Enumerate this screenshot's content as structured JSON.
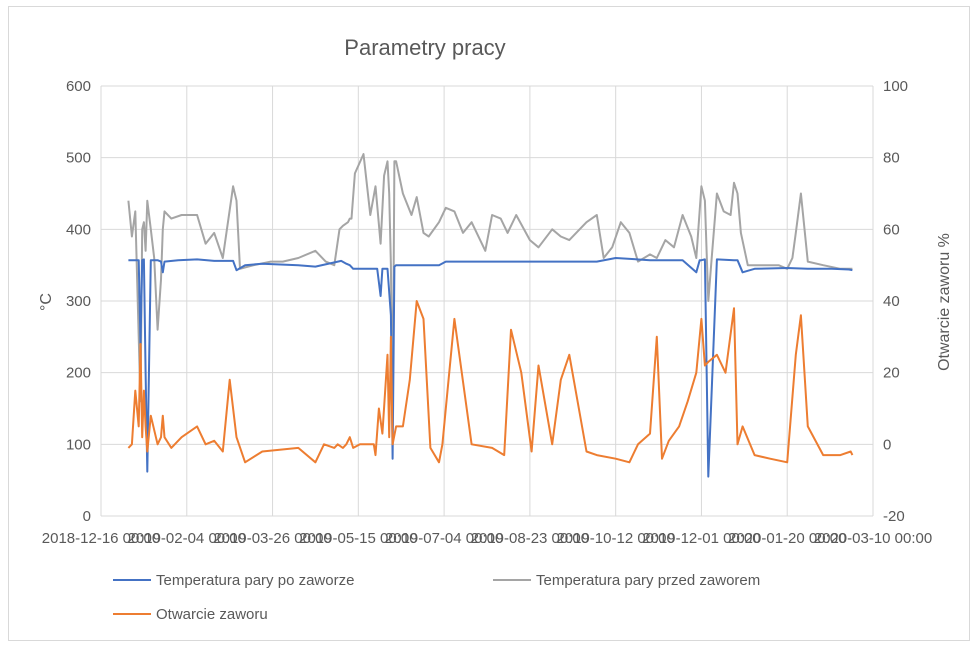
{
  "chart_data": {
    "type": "line",
    "title": "Parametry pracy",
    "xlabel": "",
    "ylabel": "°C",
    "y2label": "Otwarcie zaworu %",
    "ylim": [
      0,
      600
    ],
    "y2lim": [
      -20,
      100
    ],
    "yticks": [
      "0",
      "100",
      "200",
      "300",
      "400",
      "500",
      "600"
    ],
    "y2ticks": [
      "-20",
      "0",
      "20",
      "40",
      "60",
      "80",
      "100"
    ],
    "xlim": [
      "2018-12-16",
      "2020-03-10"
    ],
    "xticks": [
      "2018-12-16 00:00",
      "2019-02-04 00:00",
      "2019-03-26 00:00",
      "2019-05-15 00:00",
      "2019-07-04 00:00",
      "2019-08-23 00:00",
      "2019-10-12 00:00",
      "2019-12-01 00:00",
      "2020-01-20 00:00",
      "2020-03-10 00:00"
    ],
    "grid": true,
    "legend_position": "bottom",
    "series": [
      {
        "name": "Temperatura pary po zaworze",
        "axis": "left",
        "color": "#4472C4",
        "x": [
          "2019-01-01",
          "2019-01-05",
          "2019-01-07",
          "2019-01-08",
          "2019-01-09",
          "2019-01-10",
          "2019-01-11",
          "2019-01-12",
          "2019-01-14",
          "2019-01-18",
          "2019-01-20",
          "2019-01-21",
          "2019-01-22",
          "2019-01-30",
          "2019-02-10",
          "2019-02-20",
          "2019-03-03",
          "2019-03-05",
          "2019-03-10",
          "2019-03-20",
          "2019-04-10",
          "2019-04-20",
          "2019-05-05",
          "2019-05-08",
          "2019-05-10",
          "2019-05-12",
          "2019-05-15",
          "2019-05-20",
          "2019-05-26",
          "2019-05-28",
          "2019-05-29",
          "2019-06-01",
          "2019-06-03",
          "2019-06-04",
          "2019-06-05",
          "2019-06-06",
          "2019-06-10",
          "2019-07-01",
          "2019-07-05",
          "2019-08-01",
          "2019-09-01",
          "2019-10-01",
          "2019-10-12",
          "2019-11-01",
          "2019-11-20",
          "2019-11-28",
          "2019-11-30",
          "2019-12-01",
          "2019-12-03",
          "2019-12-05",
          "2019-12-10",
          "2019-12-20",
          "2019-12-22",
          "2019-12-25",
          "2020-01-01",
          "2020-01-20",
          "2020-02-01",
          "2020-02-15",
          "2020-02-25",
          "2020-02-27"
        ],
        "y": [
          357,
          357,
          357,
          240,
          357,
          358,
          200,
          62,
          357,
          357,
          355,
          340,
          355,
          357,
          358,
          356,
          356,
          343,
          350,
          352,
          350,
          348,
          356,
          352,
          350,
          345,
          345,
          345,
          345,
          307,
          345,
          345,
          280,
          80,
          348,
          350,
          350,
          350,
          355,
          355,
          355,
          355,
          360,
          357,
          357,
          340,
          357,
          357,
          358,
          55,
          358,
          357,
          357,
          340,
          345,
          346,
          345,
          345,
          344,
          343
        ]
      },
      {
        "name": "Temperatura pary przed zaworem",
        "axis": "left",
        "color": "#A5A5A5",
        "x": [
          "2019-01-01",
          "2019-01-03",
          "2019-01-05",
          "2019-01-07",
          "2019-01-08",
          "2019-01-09",
          "2019-01-10",
          "2019-01-11",
          "2019-01-12",
          "2019-01-14",
          "2019-01-16",
          "2019-01-18",
          "2019-01-20",
          "2019-01-21",
          "2019-01-22",
          "2019-01-26",
          "2019-02-01",
          "2019-02-10",
          "2019-02-15",
          "2019-02-20",
          "2019-02-25",
          "2019-03-03",
          "2019-03-05",
          "2019-03-07",
          "2019-03-15",
          "2019-03-25",
          "2019-04-01",
          "2019-04-10",
          "2019-04-20",
          "2019-04-26",
          "2019-05-01",
          "2019-05-04",
          "2019-05-06",
          "2019-05-09",
          "2019-05-10",
          "2019-05-11",
          "2019-05-13",
          "2019-05-18",
          "2019-05-22",
          "2019-05-25",
          "2019-05-28",
          "2019-05-30",
          "2019-06-01",
          "2019-06-02",
          "2019-06-03",
          "2019-06-04",
          "2019-06-05",
          "2019-06-06",
          "2019-06-10",
          "2019-06-15",
          "2019-06-18",
          "2019-06-22",
          "2019-06-25",
          "2019-07-01",
          "2019-07-05",
          "2019-07-10",
          "2019-07-15",
          "2019-07-20",
          "2019-07-28",
          "2019-08-01",
          "2019-08-06",
          "2019-08-10",
          "2019-08-15",
          "2019-08-23",
          "2019-08-28",
          "2019-09-05",
          "2019-09-10",
          "2019-09-15",
          "2019-09-25",
          "2019-10-01",
          "2019-10-05",
          "2019-10-10",
          "2019-10-15",
          "2019-10-20",
          "2019-10-25",
          "2019-11-01",
          "2019-11-05",
          "2019-11-10",
          "2019-11-15",
          "2019-11-20",
          "2019-11-25",
          "2019-11-28",
          "2019-12-01",
          "2019-12-03",
          "2019-12-05",
          "2019-12-07",
          "2019-12-10",
          "2019-12-14",
          "2019-12-18",
          "2019-12-20",
          "2019-12-22",
          "2019-12-24",
          "2019-12-28",
          "2020-01-05",
          "2020-01-15",
          "2020-01-20",
          "2020-01-23",
          "2020-01-25",
          "2020-01-28",
          "2020-02-01",
          "2020-02-10",
          "2020-02-20",
          "2020-02-27"
        ],
        "y": [
          440,
          390,
          425,
          250,
          160,
          400,
          410,
          370,
          440,
          400,
          360,
          260,
          330,
          400,
          425,
          415,
          420,
          420,
          380,
          395,
          360,
          460,
          440,
          345,
          350,
          355,
          355,
          360,
          370,
          355,
          350,
          400,
          405,
          410,
          415,
          415,
          478,
          505,
          420,
          460,
          380,
          475,
          495,
          450,
          350,
          120,
          495,
          495,
          450,
          420,
          445,
          395,
          390,
          410,
          430,
          425,
          395,
          410,
          370,
          420,
          415,
          395,
          420,
          385,
          375,
          400,
          390,
          385,
          410,
          420,
          360,
          375,
          410,
          395,
          355,
          365,
          360,
          385,
          375,
          420,
          390,
          360,
          460,
          440,
          300,
          360,
          450,
          425,
          420,
          465,
          450,
          395,
          350,
          350,
          350,
          345,
          360,
          395,
          450,
          355,
          350,
          345,
          345
        ]
      },
      {
        "name": "Otwarcie zaworu",
        "axis": "right",
        "color": "#ED7D31",
        "x": [
          "2019-01-01",
          "2019-01-03",
          "2019-01-05",
          "2019-01-07",
          "2019-01-08",
          "2019-01-09",
          "2019-01-10",
          "2019-01-11",
          "2019-01-12",
          "2019-01-14",
          "2019-01-18",
          "2019-01-20",
          "2019-01-21",
          "2019-01-22",
          "2019-01-26",
          "2019-02-01",
          "2019-02-10",
          "2019-02-15",
          "2019-02-20",
          "2019-02-25",
          "2019-03-01",
          "2019-03-05",
          "2019-03-10",
          "2019-03-20",
          "2019-04-10",
          "2019-04-20",
          "2019-04-25",
          "2019-05-01",
          "2019-05-03",
          "2019-05-06",
          "2019-05-08",
          "2019-05-10",
          "2019-05-12",
          "2019-05-16",
          "2019-05-20",
          "2019-05-24",
          "2019-05-25",
          "2019-05-27",
          "2019-05-29",
          "2019-06-01",
          "2019-06-02",
          "2019-06-03",
          "2019-06-04",
          "2019-06-06",
          "2019-06-10",
          "2019-06-14",
          "2019-06-18",
          "2019-06-22",
          "2019-06-26",
          "2019-07-01",
          "2019-07-03",
          "2019-07-05",
          "2019-07-10",
          "2019-07-20",
          "2019-08-01",
          "2019-08-08",
          "2019-08-12",
          "2019-08-18",
          "2019-08-24",
          "2019-08-28",
          "2019-09-05",
          "2019-09-10",
          "2019-09-15",
          "2019-09-25",
          "2019-10-01",
          "2019-10-12",
          "2019-10-20",
          "2019-10-25",
          "2019-11-01",
          "2019-11-05",
          "2019-11-08",
          "2019-11-12",
          "2019-11-18",
          "2019-11-23",
          "2019-11-28",
          "2019-12-01",
          "2019-12-03",
          "2019-12-05",
          "2019-12-10",
          "2019-12-15",
          "2019-12-20",
          "2019-12-22",
          "2019-12-25",
          "2020-01-01",
          "2020-01-10",
          "2020-01-20",
          "2020-01-25",
          "2020-01-28",
          "2020-02-01",
          "2020-02-10",
          "2020-02-20",
          "2020-02-26",
          "2020-02-27"
        ],
        "y": [
          -1,
          0,
          15,
          5,
          28,
          2,
          15,
          5,
          -2,
          8,
          0,
          2,
          8,
          2,
          -1,
          2,
          5,
          0,
          1,
          -2,
          18,
          2,
          -5,
          -2,
          -1,
          -5,
          0,
          -1,
          0,
          -1,
          0,
          2,
          -1,
          0,
          0,
          0,
          -3,
          10,
          3,
          25,
          2,
          30,
          0,
          5,
          5,
          18,
          40,
          35,
          -1,
          -5,
          0,
          10,
          35,
          0,
          -1,
          -3,
          32,
          20,
          -2,
          22,
          0,
          18,
          25,
          -2,
          -3,
          -4,
          -5,
          0,
          3,
          30,
          -4,
          1,
          5,
          12,
          20,
          35,
          22,
          23,
          25,
          20,
          38,
          0,
          5,
          -3,
          -4,
          -5,
          25,
          36,
          5,
          -3,
          -3,
          -2,
          -3
        ]
      }
    ]
  }
}
